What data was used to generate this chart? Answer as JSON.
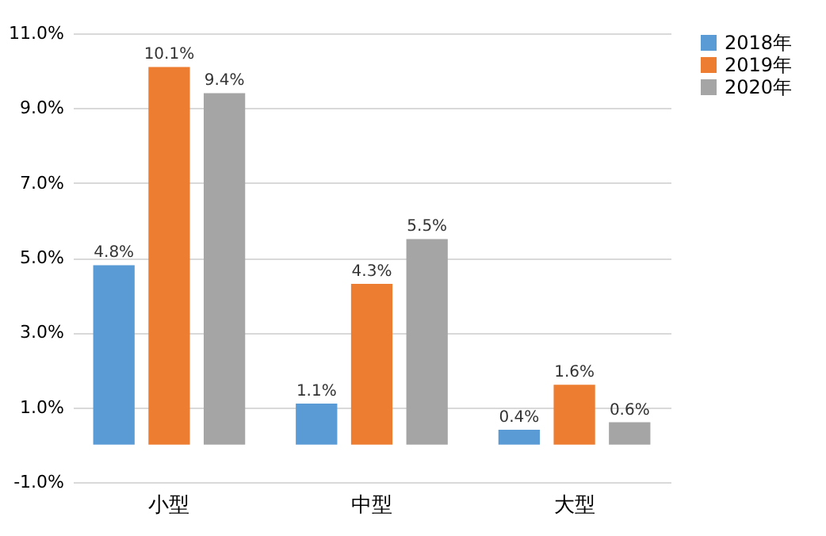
{
  "chart_data": {
    "type": "bar",
    "categories": [
      "小型",
      "中型",
      "大型"
    ],
    "series": [
      {
        "name": "2018年",
        "color": "#5b9bd5",
        "values": [
          4.8,
          1.1,
          0.4
        ],
        "value_labels": [
          "4.8%",
          "1.1%",
          "0.4%"
        ]
      },
      {
        "name": "2019年",
        "color": "#ed7d31",
        "values": [
          10.1,
          4.3,
          1.6
        ],
        "value_labels": [
          "10.1%",
          "4.3%",
          "1.6%"
        ]
      },
      {
        "name": "2020年",
        "color": "#a5a5a5",
        "values": [
          9.4,
          5.5,
          0.6
        ],
        "value_labels": [
          "9.4%",
          "5.5%",
          "0.6%"
        ]
      }
    ],
    "ylim": [
      -1,
      11
    ],
    "yticks": [
      {
        "value": -1,
        "label": "-1.0%"
      },
      {
        "value": 1,
        "label": "1.0%"
      },
      {
        "value": 3,
        "label": "3.0%"
      },
      {
        "value": 5,
        "label": "5.0%"
      },
      {
        "value": 7,
        "label": "7.0%"
      },
      {
        "value": 9,
        "label": "9.0%"
      },
      {
        "value": 11,
        "label": "11.0%"
      }
    ],
    "grid": "y",
    "legend": "right"
  }
}
